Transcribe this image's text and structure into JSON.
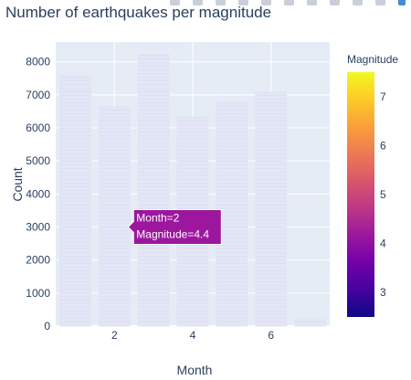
{
  "chart_data": {
    "type": "bar",
    "title": "Number of earthquakes per magnitude",
    "xlabel": "Month",
    "ylabel": "Count",
    "x_tick_labels": [
      "2",
      "4",
      "6"
    ],
    "y_tick_labels": [
      "0",
      "1000",
      "2000",
      "3000",
      "4000",
      "5000",
      "6000",
      "7000",
      "8000"
    ],
    "categories": [
      1,
      2,
      3,
      4,
      5,
      6,
      7
    ],
    "values": [
      7600,
      6650,
      8230,
      6330,
      6780,
      7080,
      200
    ],
    "xlim": [
      0.5,
      7.5
    ],
    "ylim": [
      0,
      8600
    ],
    "grid": true,
    "colorbar": {
      "title": "Magnitude",
      "tick_labels": [
        "3",
        "4",
        "5",
        "6",
        "7"
      ],
      "range": [
        2.5,
        7.5
      ],
      "colorscale": [
        "#0d0887",
        "#46039f",
        "#7201a8",
        "#9c179e",
        "#bd3786",
        "#d8576b",
        "#ed7953",
        "#fb9f3a",
        "#fdca26",
        "#f0f921"
      ]
    },
    "hover": {
      "lines": [
        "Month=2",
        "Magnitude=4.4"
      ],
      "x": 2,
      "y": 3000,
      "magnitude": 4.4
    },
    "colors": {
      "plot_bg": "#e5ecf6",
      "bar_fill": "#e2e6f6",
      "grid": "#ffffff",
      "text": "#2a3f5f"
    }
  }
}
